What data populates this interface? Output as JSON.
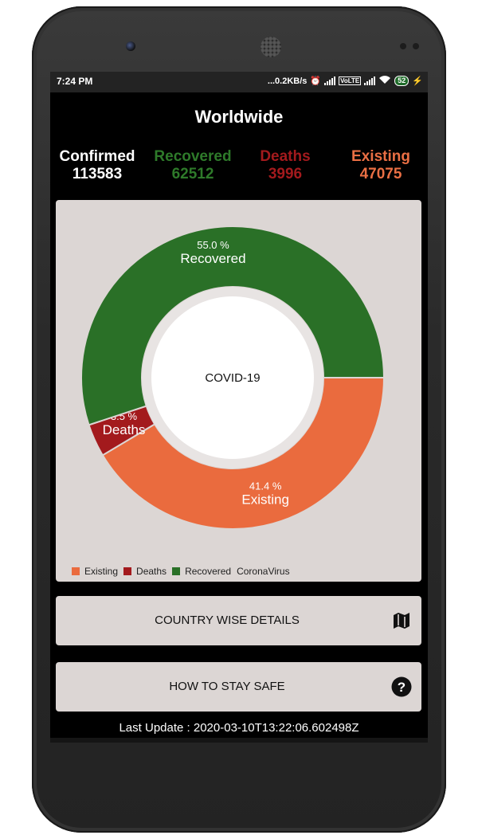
{
  "status_bar": {
    "time": "7:24 PM",
    "network_speed": "...0.2KB/s",
    "battery": "52"
  },
  "header": {
    "title": "Worldwide"
  },
  "stats": {
    "confirmed": {
      "label": "Confirmed",
      "value": "113583",
      "color": "#ffffff"
    },
    "recovered": {
      "label": "Recovered",
      "value": "62512",
      "color": "#2e7a2a"
    },
    "deaths": {
      "label": "Deaths",
      "value": "3996",
      "color": "#a31a1d"
    },
    "existing": {
      "label": "Existing",
      "value": "47075",
      "color": "#ea6f44"
    }
  },
  "chart_data": {
    "type": "pie",
    "center_text": "COVID-19",
    "legend_label": "CoronaVirus",
    "legend_placement": "bottom-left",
    "slices": [
      {
        "name": "Existing",
        "value": 41.4,
        "label": "41.4 %",
        "color": "#ea6b3e"
      },
      {
        "name": "Deaths",
        "value": 3.5,
        "label": "3.5 %",
        "color": "#a31a1d"
      },
      {
        "name": "Recovered",
        "value": 55.0,
        "label": "55.0 %",
        "color": "#2a7027"
      }
    ]
  },
  "actions": {
    "country_details": "COUNTRY WISE DETAILS",
    "stay_safe": "HOW TO STAY SAFE"
  },
  "footer": {
    "last_update": "Last Update : 2020-03-10T13:22:06.602498Z"
  }
}
